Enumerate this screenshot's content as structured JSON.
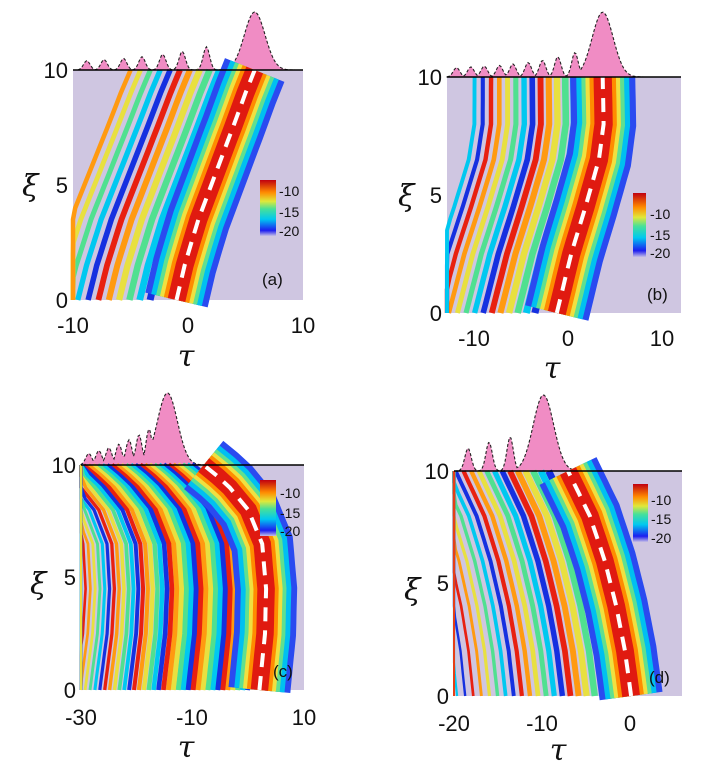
{
  "chart_data": [
    {
      "type": "heatmap",
      "panel_label": "(a)",
      "xlabel": "τ",
      "ylabel": "ξ",
      "xlim": [
        -10,
        10
      ],
      "ylim": [
        0,
        10
      ],
      "x_ticks": [
        "-10",
        "0",
        "10"
      ],
      "y_ticks": [
        "0",
        "5",
        "10"
      ],
      "colorbar": {
        "ticks": [
          "-10",
          "-15",
          "-20"
        ],
        "range": [
          -20,
          -8
        ]
      },
      "trajectory": [
        [
          -1.0,
          0
        ],
        [
          -0.3,
          1.5
        ],
        [
          0.9,
          3.5
        ],
        [
          2.4,
          5.5
        ],
        [
          3.9,
          7.5
        ],
        [
          5.0,
          9.0
        ],
        [
          5.8,
          10
        ]
      ],
      "top_profile": [
        [
          -8.8,
          0.16
        ],
        [
          -7.3,
          0.18
        ],
        [
          -5.6,
          0.2
        ],
        [
          -4.0,
          0.23
        ],
        [
          -2.2,
          0.27
        ],
        [
          -0.5,
          0.32
        ],
        [
          1.6,
          0.4
        ],
        [
          5.8,
          1.0
        ]
      ],
      "fringe_count": 11
    },
    {
      "type": "heatmap",
      "panel_label": "(b)",
      "xlabel": "τ",
      "ylabel": "ξ",
      "xlim": [
        -12.5,
        12
      ],
      "ylim": [
        0,
        10
      ],
      "x_ticks": [
        "-10",
        "0",
        "10"
      ],
      "y_ticks": [
        "0",
        "5",
        "10"
      ],
      "colorbar": {
        "ticks": [
          "-10",
          "-15",
          "-20"
        ],
        "range": [
          -20,
          -8
        ]
      },
      "trajectory": [
        [
          -1.0,
          0
        ],
        [
          0.5,
          2.5
        ],
        [
          2.0,
          4.5
        ],
        [
          3.4,
          6.5
        ],
        [
          3.9,
          8.0
        ],
        [
          3.8,
          10
        ]
      ],
      "top_profile": [
        [
          -11.5,
          0.13
        ],
        [
          -10.0,
          0.14
        ],
        [
          -8.6,
          0.15
        ],
        [
          -7.0,
          0.16
        ],
        [
          -5.6,
          0.18
        ],
        [
          -4.0,
          0.2
        ],
        [
          -2.5,
          0.23
        ],
        [
          -0.9,
          0.28
        ],
        [
          0.9,
          0.34
        ],
        [
          3.8,
          0.9
        ]
      ],
      "fringe_count": 14
    },
    {
      "type": "heatmap",
      "panel_label": "(c)",
      "xlabel": "τ",
      "ylabel": "ξ",
      "xlim": [
        -30,
        10
      ],
      "ylim": [
        0,
        10
      ],
      "x_ticks": [
        "-30",
        "-10",
        "10"
      ],
      "y_ticks": [
        "0",
        "5",
        "10"
      ],
      "colorbar": {
        "ticks": [
          "-10",
          "-15",
          "-20"
        ],
        "range": [
          -20,
          -8
        ]
      },
      "trajectory": [
        [
          2.0,
          0
        ],
        [
          3.0,
          2.5
        ],
        [
          3.2,
          4.5
        ],
        [
          2.5,
          6.5
        ],
        [
          0.0,
          8.0
        ],
        [
          -4.0,
          9.2
        ],
        [
          -8.0,
          10
        ]
      ],
      "top_profile": [
        [
          -28.6,
          0.16
        ],
        [
          -26.8,
          0.2
        ],
        [
          -25.0,
          0.24
        ],
        [
          -23.2,
          0.29
        ],
        [
          -21.4,
          0.35
        ],
        [
          -19.6,
          0.42
        ],
        [
          -17.8,
          0.5
        ],
        [
          -14.5,
          1.0
        ]
      ],
      "fringe_count": 40
    },
    {
      "type": "heatmap",
      "panel_label": "(d)",
      "xlabel": "τ",
      "ylabel": "ξ",
      "xlim": [
        -21,
        5
      ],
      "ylim": [
        0,
        10
      ],
      "x_ticks": [
        "-20",
        "-10",
        "0"
      ],
      "y_ticks": [
        "0",
        "5",
        "10"
      ],
      "colorbar": {
        "ticks": [
          "-10",
          "-15",
          "-20"
        ],
        "range": [
          -20,
          -8
        ]
      },
      "trajectory": [
        [
          -0.8,
          0
        ],
        [
          -1.5,
          2.0
        ],
        [
          -2.5,
          4.0
        ],
        [
          -3.8,
          6.0
        ],
        [
          -5.5,
          8.0
        ],
        [
          -8.0,
          10
        ]
      ],
      "top_profile": [
        [
          -19.4,
          0.3
        ],
        [
          -17.0,
          0.38
        ],
        [
          -14.6,
          0.45
        ],
        [
          -10.8,
          1.0
        ]
      ],
      "fringe_count": 24
    }
  ]
}
